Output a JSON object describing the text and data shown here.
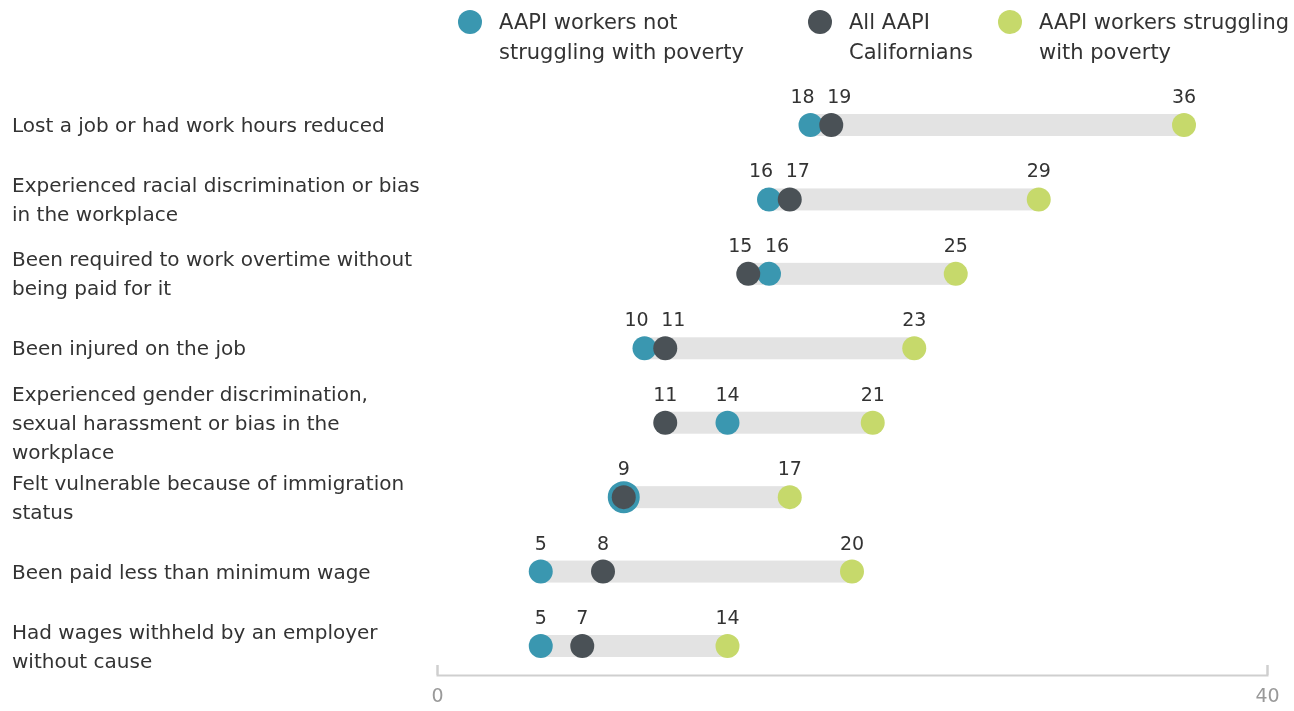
{
  "chart_data": {
    "type": "scatter",
    "orientation": "horizontal",
    "categories": [
      "Lost a job or had work hours reduced",
      "Experienced racial discrimination or bias in the workplace",
      "Been required to work overtime without being paid for it",
      "Been injured on the job",
      "Experienced gender discrimination, sexual harassment or bias in the workplace",
      "Felt vulnerable because of immigration status",
      "Been paid less than minimum wage",
      "Had wages withheld by an employer without cause"
    ],
    "series": [
      {
        "name": "AAPI workers not struggling with poverty",
        "color": "#3a97b0",
        "values": [
          18,
          16,
          16,
          10,
          14,
          9,
          5,
          5
        ],
        "value_labels": [
          "18",
          "16",
          "16",
          "10",
          "14",
          null,
          "5",
          "5"
        ]
      },
      {
        "name": "All AAPI Californians",
        "color": "#4a5156",
        "values": [
          19,
          17,
          15,
          11,
          11,
          9,
          8,
          7
        ],
        "value_labels": [
          "19",
          "17",
          "15",
          "11",
          "11",
          "9",
          "8",
          "7"
        ]
      },
      {
        "name": "AAPI workers struggling with poverty",
        "color": "#c6d96b",
        "values": [
          36,
          29,
          25,
          23,
          21,
          17,
          20,
          14
        ],
        "value_labels": [
          "36",
          "29",
          "25",
          "23",
          "21",
          "17",
          "20",
          "14"
        ]
      }
    ],
    "xlim": [
      0,
      40
    ],
    "xticks": [
      0,
      40
    ],
    "legend": "top",
    "marker": "circle",
    "grid": false
  }
}
